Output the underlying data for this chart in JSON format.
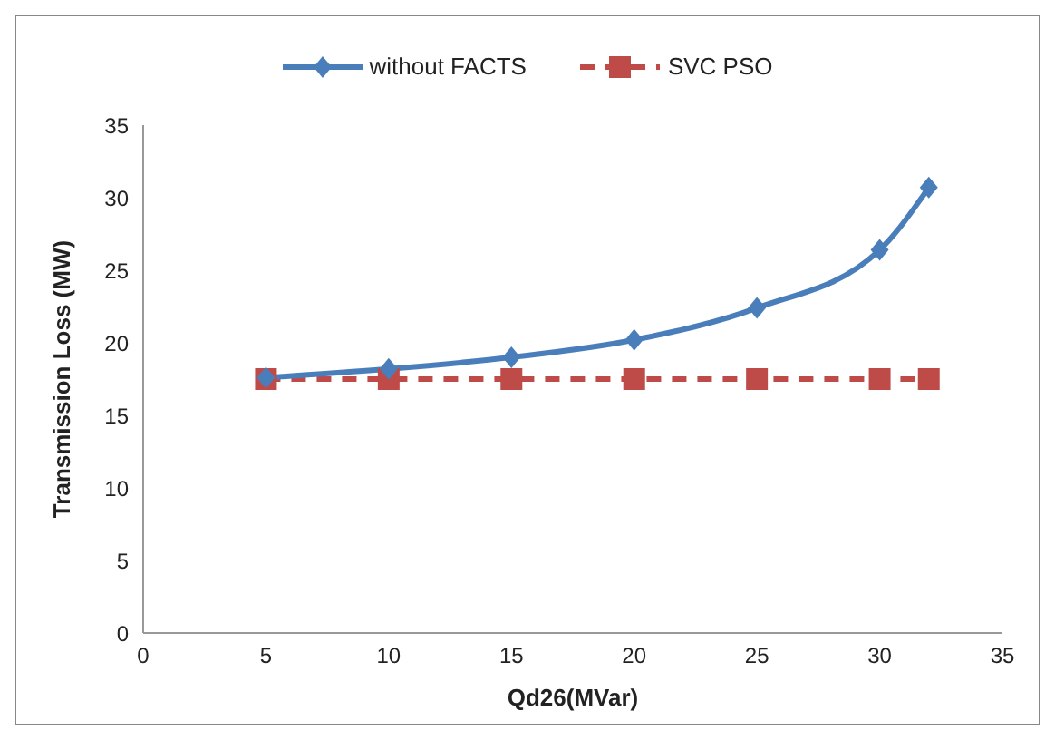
{
  "chart_data": {
    "type": "line",
    "xlabel": "Qd26(MVar)",
    "ylabel": "Transmission Loss (MW)",
    "x": [
      5,
      10,
      15,
      20,
      25,
      30,
      32
    ],
    "xlim": [
      0,
      35
    ],
    "xticks": [
      0,
      5,
      10,
      15,
      20,
      25,
      30,
      35
    ],
    "ylim": [
      0,
      35
    ],
    "yticks": [
      0,
      5,
      10,
      15,
      20,
      25,
      30,
      35
    ],
    "grid": false,
    "legend": "top",
    "series": [
      {
        "name": "without FACTS",
        "color": "#4a7ebb",
        "values": [
          17.6,
          18.2,
          19.0,
          20.2,
          22.4,
          26.4,
          30.7
        ],
        "marker": "diamond",
        "line_style": "solid"
      },
      {
        "name": "SVC PSO",
        "color": "#be4b48",
        "values": [
          17.5,
          17.5,
          17.5,
          17.5,
          17.5,
          17.5,
          17.5
        ],
        "marker": "square",
        "line_style": "dashed"
      }
    ]
  }
}
